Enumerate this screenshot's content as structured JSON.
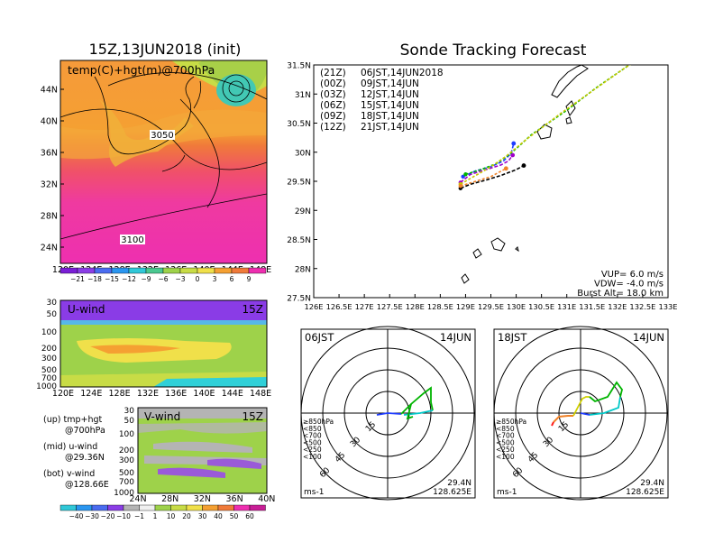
{
  "colors": {
    "track_21z": "#000000",
    "track_00z": "#a000c8",
    "track_03z": "#1e3cff",
    "track_06z": "#00b400",
    "track_09z": "#c8c800",
    "track_12z": "#f08228"
  },
  "left_map": {
    "title": "15Z,13JUN2018 (init)",
    "field_label": "temp(C)+hgt(m)@700hPa",
    "contour_labels": [
      "3050",
      "3100"
    ],
    "lat_labels": [
      "44N",
      "40N",
      "36N",
      "32N",
      "28N",
      "24N"
    ],
    "lon_labels": [
      "120E",
      "124E",
      "128E",
      "132E",
      "136E",
      "140E",
      "144E",
      "148E"
    ],
    "colorbar_labels": [
      "−21",
      "−18",
      "−15",
      "−12",
      "−9",
      "−6",
      "−3",
      "0",
      "3",
      "6",
      "9"
    ]
  },
  "uwind": {
    "title": "U-wind",
    "time": "15Z",
    "p_labels": [
      "30",
      "50",
      "100",
      "200",
      "300",
      "500",
      "700",
      "1000"
    ],
    "lon_labels": [
      "120E",
      "124E",
      "128E",
      "132E",
      "136E",
      "140E",
      "144E",
      "148E"
    ]
  },
  "vwind": {
    "title": "V-wind",
    "time": "15Z",
    "p_labels": [
      "30",
      "50",
      "100",
      "200",
      "300",
      "500",
      "700",
      "1000"
    ],
    "lat_labels": [
      "24N",
      "28N",
      "32N",
      "36N",
      "40N"
    ],
    "colorbar_labels": [
      "−40",
      "−30",
      "−20",
      "−10",
      "−1",
      "1",
      "10",
      "20",
      "30",
      "40",
      "50",
      "60"
    ]
  },
  "legend_notes": [
    {
      "head": "(up) tmp+hgt",
      "sub": "@700hPa"
    },
    {
      "head": "(mid) u-wind",
      "sub": "@29.36N"
    },
    {
      "head": "(bot) v-wind",
      "sub": "@128.66E"
    }
  ],
  "tracking": {
    "title": "Sonde Tracking Forecast",
    "legend": [
      {
        "code": "(21Z)",
        "label": "06JST,14JUN2018"
      },
      {
        "code": "(00Z)",
        "label": "09JST,14JUN"
      },
      {
        "code": "(03Z)",
        "label": "12JST,14JUN"
      },
      {
        "code": "(06Z)",
        "label": "15JST,14JUN"
      },
      {
        "code": "(09Z)",
        "label": "18JST,14JUN"
      },
      {
        "code": "(12Z)",
        "label": "21JST,14JUN"
      }
    ],
    "lat_labels": [
      "31.5N",
      "31N",
      "30.5N",
      "30N",
      "29.5N",
      "29N",
      "28.5N",
      "28N",
      "27.5N"
    ],
    "lon_labels": [
      "126E",
      "126.5E",
      "127E",
      "127.5E",
      "128E",
      "128.5E",
      "129E",
      "129.5E",
      "130E",
      "130.5E",
      "131E",
      "131.5E",
      "132E",
      "132.5E",
      "133E"
    ],
    "params": [
      "VUP= 6.0 m/s",
      "VDW= -4.0 m/s",
      "Burst Alt= 18.0 km"
    ]
  },
  "chart_data": [
    {
      "type": "line",
      "title": "Sonde Tracking Forecast",
      "xlim": [
        126,
        133
      ],
      "ylim": [
        27.5,
        31.5
      ],
      "series": [
        {
          "name": "(21Z) 06JST,14JUN2018",
          "x": [
            128.9,
            129.1,
            129.4,
            129.7,
            130.0,
            130.15
          ],
          "y": [
            29.38,
            29.45,
            29.52,
            29.6,
            29.7,
            29.77
          ]
        },
        {
          "name": "(00Z) 09JST,14JUN",
          "x": [
            128.9,
            129.1,
            129.4,
            129.7,
            129.85,
            129.93
          ],
          "y": [
            29.48,
            29.62,
            29.7,
            29.78,
            29.85,
            29.95
          ]
        },
        {
          "name": "(03Z) 12JST,14JUN",
          "x": [
            128.95,
            129.2,
            129.5,
            129.75,
            129.9,
            129.95
          ],
          "y": [
            29.58,
            29.68,
            29.75,
            29.85,
            29.98,
            30.15
          ]
        },
        {
          "name": "(06Z) 15JST,14JUN",
          "x": [
            129.0,
            129.3,
            129.6,
            129.85,
            130.05,
            130.3,
            131.0,
            131.6,
            132.2,
            132.5
          ],
          "y": [
            29.62,
            29.7,
            29.8,
            29.95,
            30.1,
            30.3,
            30.72,
            31.12,
            31.48,
            31.68
          ]
        },
        {
          "name": "(09Z) 18JST,14JUN",
          "x": [
            128.9,
            129.2,
            129.5,
            129.8,
            130.2,
            130.9,
            131.5,
            132.1,
            132.5
          ],
          "y": [
            29.45,
            29.6,
            29.75,
            29.93,
            30.22,
            30.68,
            31.05,
            31.42,
            31.65
          ]
        },
        {
          "name": "(12Z) 21JST,14JUN",
          "x": [
            128.9,
            129.2,
            129.5,
            129.8
          ],
          "y": [
            29.42,
            29.5,
            29.58,
            29.72
          ]
        }
      ]
    }
  ],
  "polar_left": {
    "time": "06JST",
    "date": "14JUN",
    "ring_labels": [
      "15",
      "30",
      "45",
      "60"
    ],
    "levels": [
      "≥850hPa",
      "<850",
      "<700",
      "<500",
      "<250",
      "<100"
    ],
    "unit": "ms-1",
    "lat": "29.4N",
    "lon": "128.625E"
  },
  "polar_right": {
    "time": "18JST",
    "date": "14JUN",
    "ring_labels": [
      "15",
      "30",
      "45",
      "60"
    ],
    "levels": [
      "≥850hPa",
      "<850",
      "<700",
      "<500",
      "<250",
      "<100"
    ],
    "unit": "ms-1",
    "lat": "29.4N",
    "lon": "128.625E"
  }
}
